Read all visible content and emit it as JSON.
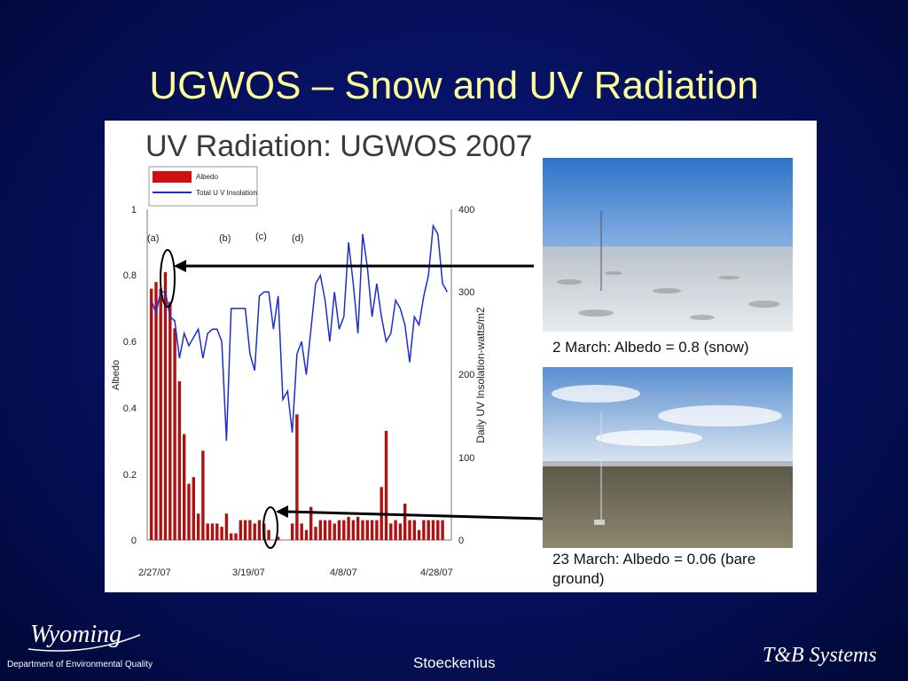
{
  "slide_title": "UGWOS – Snow and UV Radiation",
  "footer": {
    "author": "Stoeckenius",
    "logo_left_text": "Department of Environmental Quality",
    "logo_left_script": "Wyoming",
    "logo_right_script": "T&B Systems"
  },
  "photos": [
    {
      "caption": "2 March: Albedo = 0.8 (snow)",
      "scene": "snow"
    },
    {
      "caption": "23 March: Albedo = 0.06 (bare ground)",
      "scene": "bare-ground"
    }
  ],
  "colors": {
    "albedo_bar": "#b01010",
    "uv_line": "#1a2fd0",
    "title_text": "#ffff99",
    "background": "#06105c"
  },
  "chart_data": {
    "type": "bar",
    "title": "UV Radiation: UGWOS 2007",
    "ylabel": "Albedo",
    "y2label": "Daily UV Insolation-watts/m2",
    "ylim": [
      0,
      1
    ],
    "y2lim": [
      0,
      400
    ],
    "yticks": [
      "1",
      "0.8",
      "0.6",
      "0.4",
      "0.2",
      "0"
    ],
    "y2ticks": [
      "400",
      "300",
      "200",
      "100",
      "0"
    ],
    "xticks": [
      "2/27/07",
      "3/19/07",
      "4/8/07",
      "4/28/07"
    ],
    "annotations": [
      "(a)",
      "(b)",
      "(c)",
      "(d)"
    ],
    "legend": [
      "Albedo",
      "Total U V Insolation"
    ],
    "legend_placement": "top-left",
    "series": [
      {
        "name": "Albedo",
        "type": "bar",
        "x": [
          0,
          1,
          2,
          3,
          4,
          5,
          6,
          7,
          8,
          9,
          10,
          11,
          12,
          13,
          14,
          15,
          16,
          17,
          18,
          19,
          20,
          21,
          22,
          23,
          24,
          25,
          26,
          27,
          28,
          29,
          30,
          31,
          32,
          33,
          34,
          35,
          36,
          37,
          38,
          39,
          40,
          41,
          42,
          43,
          44,
          45,
          46,
          47,
          48,
          49,
          50,
          51,
          52,
          53,
          54,
          55,
          56,
          57,
          58,
          59,
          60,
          61,
          62,
          63
        ],
        "values": [
          0.76,
          0.78,
          0.76,
          0.81,
          0.72,
          0.64,
          0.48,
          0.32,
          0.17,
          0.19,
          0.08,
          0.27,
          0.05,
          0.05,
          0.05,
          0.04,
          0.08,
          0.02,
          0.02,
          0.06,
          0.06,
          0.06,
          0.05,
          0.06,
          0.05,
          0.03,
          0,
          0.01,
          0,
          0,
          0.05,
          0.38,
          0.05,
          0.03,
          0.1,
          0.04,
          0.06,
          0.06,
          0.06,
          0.05,
          0.06,
          0.06,
          0.07,
          0.06,
          0.07,
          0.06,
          0.06,
          0.06,
          0.06,
          0.16,
          0.33,
          0.05,
          0.06,
          0.05,
          0.11,
          0.06,
          0.06,
          0.03,
          0.06,
          0.06,
          0.06,
          0.06,
          0.06,
          0
        ]
      },
      {
        "name": "Total U V Insolation",
        "type": "line",
        "x": [
          0,
          1,
          2,
          3,
          4,
          5,
          6,
          7,
          8,
          9,
          10,
          11,
          12,
          13,
          14,
          15,
          16,
          17,
          18,
          19,
          20,
          21,
          22,
          23,
          24,
          25,
          26,
          27,
          28,
          29,
          30,
          31,
          32,
          33,
          34,
          35,
          36,
          37,
          38,
          39,
          40,
          41,
          42,
          43,
          44,
          45,
          46,
          47,
          48,
          49,
          50,
          51,
          52,
          53,
          54,
          55,
          56,
          57,
          58,
          59,
          60,
          61,
          62,
          63
        ],
        "values": [
          290,
          275,
          300,
          300,
          270,
          265,
          220,
          250,
          235,
          245,
          255,
          220,
          250,
          255,
          255,
          240,
          120,
          280,
          280,
          280,
          280,
          225,
          205,
          295,
          300,
          300,
          255,
          295,
          170,
          180,
          130,
          225,
          240,
          200,
          255,
          310,
          320,
          290,
          240,
          300,
          255,
          270,
          360,
          310,
          250,
          370,
          330,
          270,
          310,
          270,
          240,
          250,
          290,
          280,
          260,
          215,
          270,
          260,
          295,
          320,
          380,
          370,
          310,
          300
        ]
      }
    ]
  }
}
